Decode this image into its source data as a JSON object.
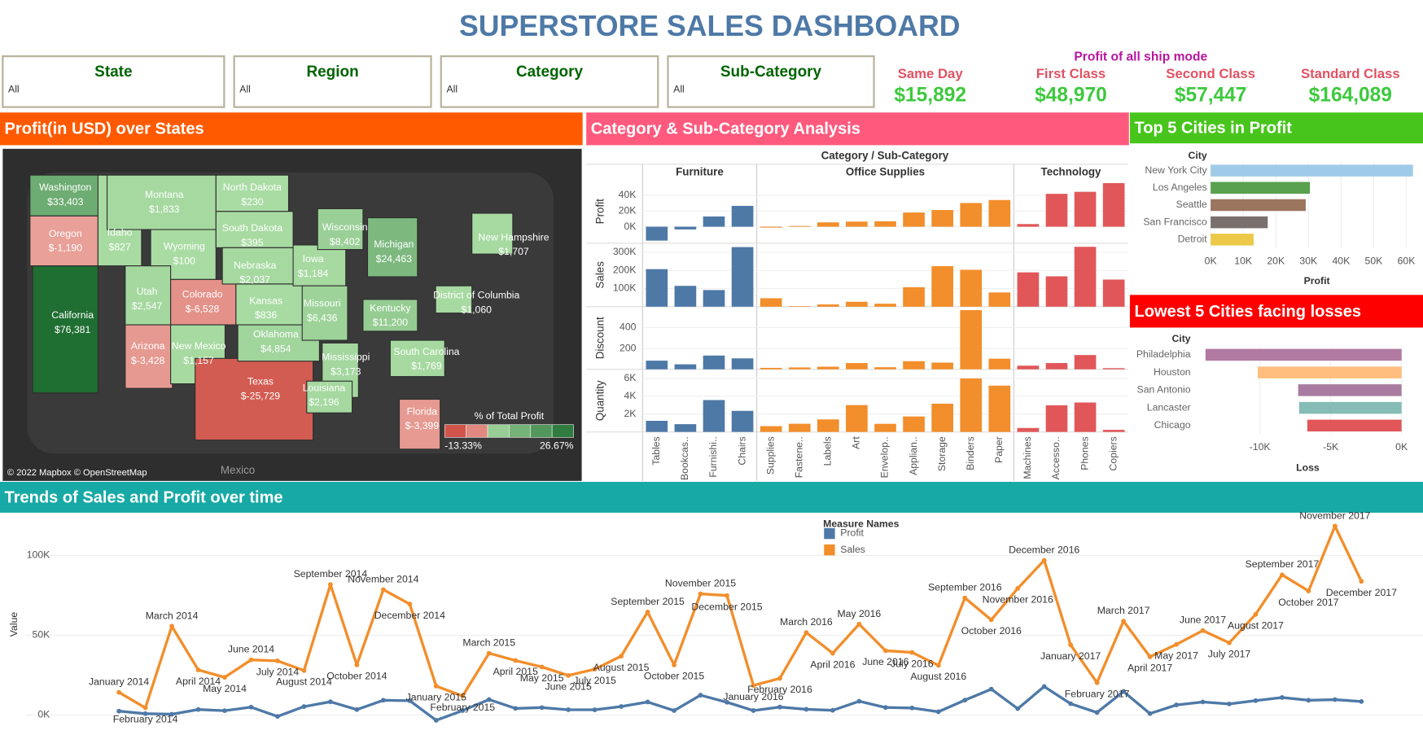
{
  "header": {
    "title": "SUPERSTORE SALES DASHBOARD"
  },
  "filters": [
    {
      "label": "State",
      "value": "All"
    },
    {
      "label": "Region",
      "value": "All"
    },
    {
      "label": "Category",
      "value": "All"
    },
    {
      "label": "Sub-Category",
      "value": "All"
    }
  ],
  "kpis": {
    "title": "Profit of all ship mode",
    "items": [
      {
        "label": "Same Day",
        "value": "$15,892"
      },
      {
        "label": "First Class",
        "value": "$48,970"
      },
      {
        "label": "Second Class",
        "value": "$57,447"
      },
      {
        "label": "Standard Class",
        "value": "$164,089"
      }
    ]
  },
  "chart_data": [
    {
      "type": "map",
      "title": "Profit(in USD) over States",
      "title_color": "#ff5a00",
      "states": [
        "Washington",
        "Oregon",
        "California",
        "Idaho",
        "Montana",
        "Wyoming",
        "Utah",
        "Colorado",
        "Arizona",
        "New Mexico",
        "North Dakota",
        "South Dakota",
        "Nebraska",
        "Kansas",
        "Texas",
        "Oklahoma",
        "Iowa",
        "Missouri",
        "Wisconsin",
        "Michigan",
        "Mississippi",
        "Louisiana",
        "Kentucky",
        "South Carolina",
        "Florida",
        "New Hampshire",
        "District of Columbia"
      ],
      "values": [
        33403,
        -1190,
        76381,
        827,
        1833,
        100,
        2547,
        -6528,
        -3428,
        1157,
        230,
        395,
        2037,
        836,
        -25729,
        4854,
        1184,
        6436,
        8402,
        24463,
        3173,
        2196,
        11200,
        1769,
        -3399,
        1707,
        1060
      ],
      "value_labels": [
        "$33,403",
        "$-1,190",
        "$76,381",
        "$827",
        "$1,833",
        "$100",
        "$2,547",
        "$-6,528",
        "$-3,428",
        "$1,157",
        "$230",
        "$395",
        "$2,037",
        "$836",
        "$-25,729",
        "$4,854",
        "$1,184",
        "$6,436",
        "$8,402",
        "$24,463",
        "$3,173",
        "$2,196",
        "$11,200",
        "$1,769",
        "$-3,399",
        "$1,707",
        "$1,060"
      ],
      "legend": {
        "title": "% of Total Profit",
        "range": [
          {
            "value": -13.33,
            "label": "-13.33%"
          },
          {
            "value": 26.67,
            "label": "26.67%"
          }
        ]
      },
      "basemap_label": "Mexico",
      "attribution": "© 2022 Mapbox © OpenStreetMap"
    },
    {
      "type": "bar",
      "title": "Category & Sub-Category Analysis",
      "title_color": "#ff5a7e",
      "subtitle": "Category / Sub-Category",
      "groups": [
        {
          "name": "Furniture",
          "color": "#4e79a7",
          "categories": [
            "Tables",
            "Bookcas..",
            "Furnishi..",
            "Chairs"
          ]
        },
        {
          "name": "Office Supplies",
          "color": "#f28e2b",
          "categories": [
            "Supplies",
            "Fastene..",
            "Labels",
            "Art",
            "Envelop..",
            "Applian..",
            "Storage",
            "Binders",
            "Paper"
          ]
        },
        {
          "name": "Technology",
          "color": "#e15759",
          "categories": [
            "Machines",
            "Accesso..",
            "Phones",
            "Copiers"
          ]
        }
      ],
      "panels": [
        {
          "name": "Profit",
          "values": [
            -17725,
            -3473,
            13059,
            26590,
            -1189,
            950,
            5546,
            6528,
            6964,
            18138,
            21279,
            30222,
            34054,
            3385,
            41937,
            44516,
            55618
          ],
          "ylim": [
            -21000,
            60000
          ],
          "yticks": [
            {
              "value": 0,
              "label": "0K"
            },
            {
              "value": 20000,
              "label": "20K"
            },
            {
              "value": 40000,
              "label": "40K"
            }
          ]
        },
        {
          "name": "Sales",
          "values": [
            206966,
            114880,
            91705,
            328449,
            46674,
            3024,
            12486,
            27119,
            16476,
            107532,
            223844,
            203413,
            78479,
            189239,
            167380,
            330007,
            149528
          ],
          "ylim": [
            0,
            350000
          ],
          "yticks": [
            {
              "value": 100000,
              "label": "100K"
            },
            {
              "value": 200000,
              "label": "200K"
            },
            {
              "value": 300000,
              "label": "300K"
            }
          ]
        },
        {
          "name": "Discount",
          "values": [
            83,
            48,
            132,
            105,
            14,
            18,
            25,
            60,
            20,
            78,
            64,
            567,
            102,
            35,
            60,
            137,
            11
          ],
          "ylim": [
            0,
            600
          ],
          "yticks": [
            200,
            400
          ]
        },
        {
          "name": "Quantity",
          "values": [
            1241,
            868,
            3563,
            2356,
            647,
            914,
            1400,
            3000,
            906,
            1729,
            3158,
            5974,
            5178,
            440,
            2976,
            3289,
            234
          ],
          "ylim": [
            0,
            7000
          ],
          "yticks": [
            {
              "value": 2000,
              "label": "2K"
            },
            {
              "value": 4000,
              "label": "4K"
            },
            {
              "value": 6000,
              "label": "6K"
            }
          ]
        }
      ]
    },
    {
      "type": "hbar",
      "title": "Top 5 Cities in Profit",
      "title_color": "#47c51c",
      "category_label": "City",
      "x_label": "Profit",
      "categories": [
        "New York City",
        "Los Angeles",
        "Seattle",
        "San Francisco",
        "Detroit"
      ],
      "values": [
        62037,
        30441,
        29156,
        17508,
        13181
      ],
      "colors": [
        "#a0cbe8",
        "#59a14f",
        "#9c755f",
        "#79706e",
        "#edc948"
      ],
      "xlim": [
        0,
        64000
      ],
      "xticks": [
        {
          "value": 0,
          "label": "0K"
        },
        {
          "value": 10000,
          "label": "10K"
        },
        {
          "value": 20000,
          "label": "20K"
        },
        {
          "value": 30000,
          "label": "30K"
        },
        {
          "value": 40000,
          "label": "40K"
        },
        {
          "value": 50000,
          "label": "50K"
        },
        {
          "value": 60000,
          "label": "60K"
        }
      ],
      "grid": true
    },
    {
      "type": "hbar",
      "title": "Lowest 5 Cities facing losses",
      "title_color": "#ff0000",
      "category_label": "City",
      "x_label": "Loss",
      "categories": [
        "Philadelphia",
        "Houston",
        "San Antonio",
        "Lancaster",
        "Chicago"
      ],
      "values": [
        -13838,
        -10154,
        -7299,
        -7233,
        -6655
      ],
      "colors": [
        "#b07aa1",
        "#ffbe7d",
        "#a87ca0",
        "#86bcb6",
        "#e15759"
      ],
      "xlim": [
        -14500,
        1000
      ],
      "xticks": [
        {
          "value": -10000,
          "label": "-10K"
        },
        {
          "value": -5000,
          "label": "-5K"
        },
        {
          "value": 0,
          "label": "0K"
        }
      ],
      "grid": true
    },
    {
      "type": "line",
      "title": "Trends of Sales and Profit over time",
      "title_color": "#17a9a5",
      "y_label": "Value",
      "legend_title": "Measure Names",
      "x": [
        "January 2014",
        "February 2014",
        "March 2014",
        "April 2014",
        "May 2014",
        "June 2014",
        "July 2014",
        "August 2014",
        "September 2014",
        "October 2014",
        "November 2014",
        "December 2014",
        "January 2015",
        "February 2015",
        "March 2015",
        "April 2015",
        "May 2015",
        "June 2015",
        "July 2015",
        "August 2015",
        "September 2015",
        "October 2015",
        "November 2015",
        "December 2015",
        "January 2016",
        "February 2016",
        "March 2016",
        "April 2016",
        "May 2016",
        "June 2016",
        "July 2016",
        "August 2016",
        "September 2016",
        "October 2016",
        "November 2016",
        "December 2016",
        "January 2017",
        "February 2017",
        "March 2017",
        "April 2017",
        "May 2017",
        "June 2017",
        "July 2017",
        "August 2017",
        "September 2017",
        "October 2017",
        "November 2017",
        "December 2017"
      ],
      "series": [
        {
          "name": "Profit",
          "color": "#4e79a7",
          "values": [
            2450,
            862,
            499,
            3489,
            2739,
            4977,
            -841,
            5318,
            8328,
            3448,
            9292,
            8983,
            -3281,
            2814,
            9732,
            4187,
            4667,
            3335,
            3288,
            5355,
            8210,
            2817,
            12475,
            8017,
            2824,
            5004,
            3611,
            2978,
            8662,
            4750,
            4432,
            2063,
            9329,
            16243,
            4011,
            17885,
            7140,
            1613,
            14751,
            933,
            6342,
            8223,
            6952,
            9041,
            10992,
            9275,
            9690,
            8483
          ]
        },
        {
          "name": "Sales",
          "color": "#f28e2b",
          "values": [
            14237,
            4520,
            55691,
            28295,
            23648,
            34595,
            33946,
            27909,
            81777,
            31453,
            78628,
            69546,
            18174,
            11951,
            38726,
            34195,
            30132,
            24797,
            28765,
            36898,
            64596,
            31405,
            75973,
            74920,
            18542,
            22979,
            51716,
            38750,
            56988,
            40344,
            39262,
            31115,
            73410,
            59688,
            79412,
            96999,
            43971,
            20301,
            58872,
            36522,
            44261,
            52981,
            45264,
            63121,
            87867,
            77777,
            118448,
            83829
          ]
        }
      ],
      "ylim": [
        -10000,
        124000
      ],
      "yticks": [
        {
          "value": 0,
          "label": "0K"
        },
        {
          "value": 50000,
          "label": "50K"
        },
        {
          "value": 100000,
          "label": "100K"
        }
      ],
      "grid": true
    }
  ]
}
